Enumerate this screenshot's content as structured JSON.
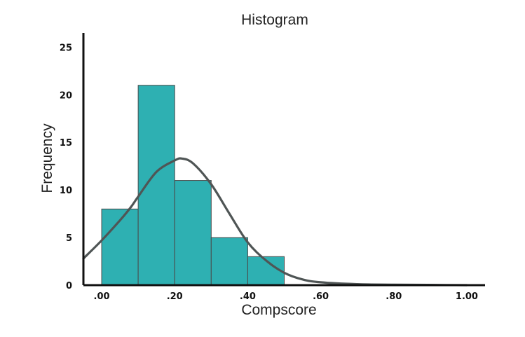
{
  "chart_data": {
    "type": "bar",
    "title": "Histogram",
    "xlabel": "Compscore",
    "ylabel": "Frequency",
    "bins": [
      {
        "x0": 0.0,
        "x1": 0.1,
        "value": 8
      },
      {
        "x0": 0.1,
        "x1": 0.2,
        "value": 21
      },
      {
        "x0": 0.2,
        "x1": 0.3,
        "value": 11
      },
      {
        "x0": 0.3,
        "x1": 0.4,
        "value": 5
      },
      {
        "x0": 0.4,
        "x1": 0.5,
        "value": 3
      }
    ],
    "x_ticks": [
      {
        "value": 0.0,
        "label": ".00"
      },
      {
        "value": 0.2,
        "label": ".20"
      },
      {
        "value": 0.4,
        "label": ".40"
      },
      {
        "value": 0.6,
        "label": ".60"
      },
      {
        "value": 0.8,
        "label": ".80"
      },
      {
        "value": 1.0,
        "label": "1.00"
      }
    ],
    "y_ticks": [
      {
        "value": 0,
        "label": "0"
      },
      {
        "value": 5,
        "label": "5"
      },
      {
        "value": 10,
        "label": "10"
      },
      {
        "value": 15,
        "label": "15"
      },
      {
        "value": 20,
        "label": "20"
      },
      {
        "value": 25,
        "label": "25"
      }
    ],
    "xlim": [
      -0.05,
      1.05
    ],
    "ylim": [
      0,
      26.5
    ],
    "curve": [
      {
        "x": -0.05,
        "y": 2.8
      },
      {
        "x": 0.0,
        "y": 4.7
      },
      {
        "x": 0.05,
        "y": 6.8
      },
      {
        "x": 0.08,
        "y": 8.2
      },
      {
        "x": 0.1,
        "y": 9.3
      },
      {
        "x": 0.15,
        "y": 11.9
      },
      {
        "x": 0.2,
        "y": 13.1
      },
      {
        "x": 0.22,
        "y": 13.3
      },
      {
        "x": 0.25,
        "y": 12.8
      },
      {
        "x": 0.3,
        "y": 10.6
      },
      {
        "x": 0.35,
        "y": 7.5
      },
      {
        "x": 0.4,
        "y": 4.5
      },
      {
        "x": 0.45,
        "y": 2.6
      },
      {
        "x": 0.5,
        "y": 1.3
      },
      {
        "x": 0.55,
        "y": 0.6
      },
      {
        "x": 0.6,
        "y": 0.3
      },
      {
        "x": 0.7,
        "y": 0.1
      },
      {
        "x": 0.8,
        "y": 0.05
      },
      {
        "x": 1.0,
        "y": 0.0
      }
    ],
    "grid": false,
    "colors": {
      "bar_fill": "#2eb0b2",
      "bar_stroke": "#4a4a4a",
      "curve": "#4f5555",
      "axis": "#111111",
      "text": "#222222"
    }
  }
}
